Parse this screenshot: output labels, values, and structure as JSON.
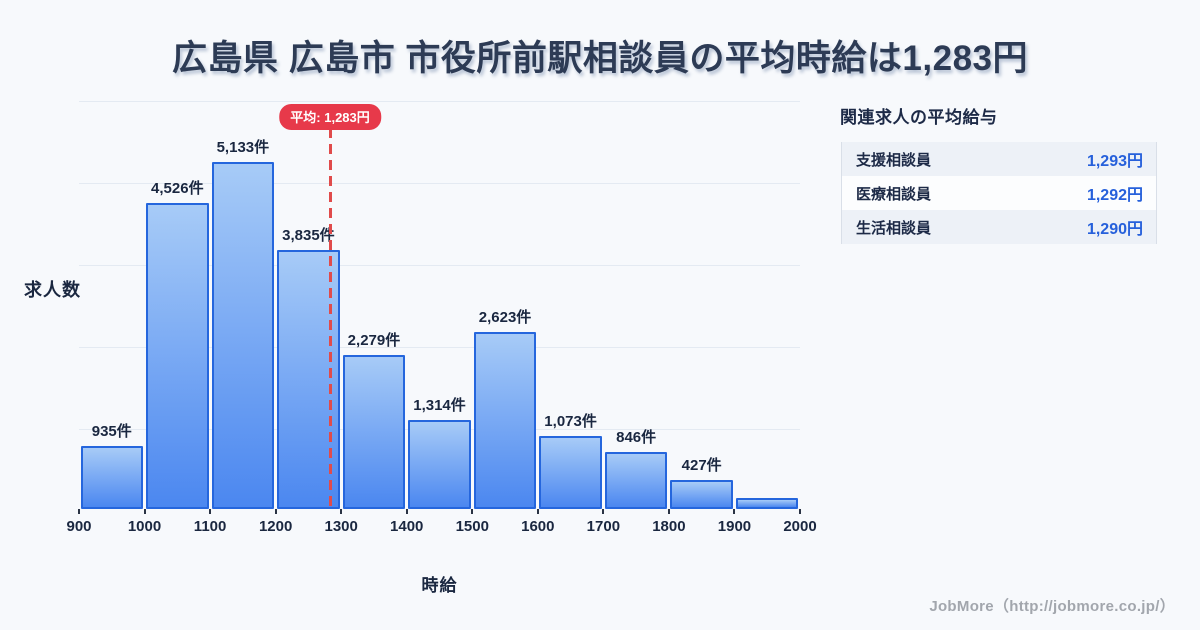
{
  "title": "広島県 広島市 市役所前駅相談員の平均時給は1,283円",
  "chart_data": {
    "type": "bar",
    "subtype": "histogram",
    "xlabel": "時給",
    "ylabel": "求人数",
    "x_ticks": [
      900,
      1000,
      1100,
      1200,
      1300,
      1400,
      1500,
      1600,
      1700,
      1800,
      1900,
      2000
    ],
    "bin_width": 100,
    "bins": [
      {
        "x0": 900,
        "x1": 1000,
        "count": 935,
        "label": "935件"
      },
      {
        "x0": 1000,
        "x1": 1100,
        "count": 4526,
        "label": "4,526件"
      },
      {
        "x0": 1100,
        "x1": 1200,
        "count": 5133,
        "label": "5,133件"
      },
      {
        "x0": 1200,
        "x1": 1300,
        "count": 3835,
        "label": "3,835件"
      },
      {
        "x0": 1300,
        "x1": 1400,
        "count": 2279,
        "label": "2,279件"
      },
      {
        "x0": 1400,
        "x1": 1500,
        "count": 1314,
        "label": "1,314件"
      },
      {
        "x0": 1500,
        "x1": 1600,
        "count": 2623,
        "label": "2,623件"
      },
      {
        "x0": 1600,
        "x1": 1700,
        "count": 1073,
        "label": "1,073件"
      },
      {
        "x0": 1700,
        "x1": 1800,
        "count": 846,
        "label": "846件"
      },
      {
        "x0": 1800,
        "x1": 1900,
        "count": 427,
        "label": "427件"
      },
      {
        "x0": 1900,
        "x1": 2000,
        "count": 160,
        "label": ""
      }
    ],
    "average_value": 1283,
    "average_label": "平均: 1,283円",
    "grid": true,
    "gridline_count": 5,
    "legend": "none",
    "colors": {
      "bar_top": "#a7cbf7",
      "bar_bottom": "#4b87f0",
      "bar_border": "#2566dd",
      "average_line": "#e04b4b",
      "average_badge_bg": "#e7394a",
      "grid": "#e4eaf2",
      "text_dark": "#1a2740"
    }
  },
  "related_jobs": {
    "title": "関連求人の平均給与",
    "rows": [
      {
        "label": "支援相談員",
        "value": "1,293円"
      },
      {
        "label": "医療相談員",
        "value": "1,292円"
      },
      {
        "label": "生活相談員",
        "value": "1,290円"
      }
    ],
    "value_color": "#2660db"
  },
  "footer": {
    "credit": "JobMore（http://jobmore.co.jp/）"
  }
}
